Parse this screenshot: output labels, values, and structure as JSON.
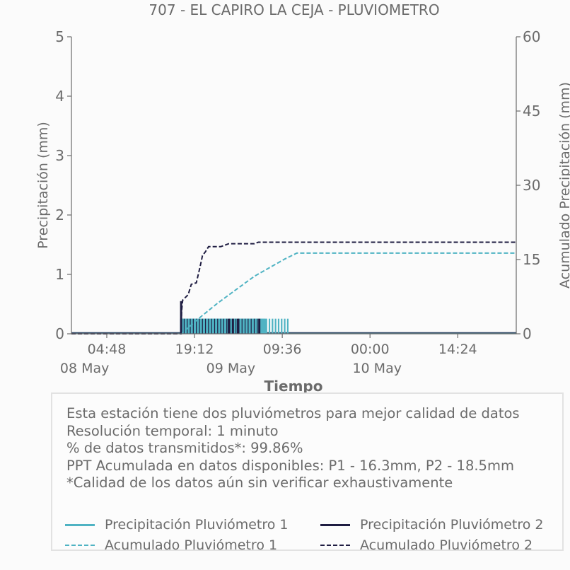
{
  "chart_data": {
    "type": "line",
    "title": "707 - EL CAPIRO LA CEJA - PLUVIOMETRO",
    "xlabel": "Tiempo",
    "ylabel": "Precipitación (mm)",
    "y2label": "Acumulado Precipitación (mm)",
    "ylim": [
      0,
      5
    ],
    "y2lim": [
      0,
      60
    ],
    "yticks": [
      "0",
      "1",
      "2",
      "3",
      "4",
      "5"
    ],
    "y2ticks": [
      "0",
      "15",
      "30",
      "45",
      "60"
    ],
    "xlim": [
      "2024-05-07T23:00",
      "2024-05-11T00:00"
    ],
    "xticks": [
      {
        "time": "2024-05-08T04:48",
        "label": "04:48"
      },
      {
        "time": "2024-05-08T19:12",
        "label": "19:12"
      },
      {
        "time": "2024-05-09T09:36",
        "label": "09:36"
      },
      {
        "time": "2024-05-10T00:00",
        "label": "00:00"
      },
      {
        "time": "2024-05-10T14:24",
        "label": "14:24"
      }
    ],
    "date_labels": [
      {
        "time": "2024-05-08T00:00",
        "label": "08 May"
      },
      {
        "time": "2024-05-09T00:00",
        "label": "09 May"
      },
      {
        "time": "2024-05-10T00:00",
        "label": "10 May"
      }
    ],
    "series": [
      {
        "name": "Precipitación Pluviómetro 1",
        "kind": "bars",
        "color": "#4fb3c3",
        "value": 0.254,
        "start": "2024-05-08T17:00",
        "end": "2024-05-09T10:45",
        "dense_until": "2024-05-09T07:00",
        "step_minutes": 30
      },
      {
        "name": "Precipitación Pluviómetro 2",
        "kind": "bars",
        "color": "#1f1d42",
        "value": 0.254,
        "start": "2024-05-08T17:00",
        "end": "2024-05-09T05:50",
        "peaks": [
          {
            "time": "2024-05-08T17:00",
            "value": 0.55
          }
        ],
        "marks": [
          "2024-05-09T00:50",
          "2024-05-09T01:30",
          "2024-05-09T02:20",
          "2024-05-09T05:50"
        ]
      },
      {
        "name": "Acumulado Pluviómetro 1",
        "kind": "cumulative",
        "color": "#4fb3c3",
        "points": [
          [
            "2024-05-07T23:00",
            0
          ],
          [
            "2024-05-08T17:00",
            0
          ],
          [
            "2024-05-08T20:00",
            3.2
          ],
          [
            "2024-05-08T23:00",
            6.2
          ],
          [
            "2024-05-09T02:00",
            8.9
          ],
          [
            "2024-05-09T05:00",
            11.6
          ],
          [
            "2024-05-09T08:00",
            13.7
          ],
          [
            "2024-05-09T10:00",
            15.1
          ],
          [
            "2024-05-09T12:00",
            16.3
          ],
          [
            "2024-05-11T00:00",
            16.3
          ]
        ]
      },
      {
        "name": "Acumulado Pluviómetro 2",
        "kind": "cumulative",
        "color": "#1f1d42",
        "points": [
          [
            "2024-05-07T23:00",
            0
          ],
          [
            "2024-05-08T17:00",
            0
          ],
          [
            "2024-05-08T17:05",
            4.6
          ],
          [
            "2024-05-08T17:15",
            6.8
          ],
          [
            "2024-05-08T18:10",
            7.9
          ],
          [
            "2024-05-08T18:40",
            10.0
          ],
          [
            "2024-05-08T19:30",
            10.3
          ],
          [
            "2024-05-08T20:05",
            13.4
          ],
          [
            "2024-05-08T20:30",
            15.8
          ],
          [
            "2024-05-08T21:00",
            16.6
          ],
          [
            "2024-05-08T21:30",
            17.6
          ],
          [
            "2024-05-08T23:30",
            17.6
          ],
          [
            "2024-05-09T00:10",
            17.9
          ],
          [
            "2024-05-09T00:50",
            18.2
          ],
          [
            "2024-05-09T05:00",
            18.2
          ],
          [
            "2024-05-09T05:40",
            18.5
          ],
          [
            "2024-05-11T00:00",
            18.5
          ]
        ]
      }
    ],
    "legend_position": "bottom"
  },
  "info": {
    "lines": [
      "Esta estación tiene dos pluviómetros para mejor calidad de datos",
      "Resolución temporal: 1 minuto",
      "% de datos transmitidos*: 99.86%",
      "PPT Acumulada en datos disponibles: P1 - 16.3mm, P2 - 18.5mm",
      "*Calidad de los datos aún sin verificar exhaustivamente"
    ]
  },
  "legend": [
    {
      "label": "Precipitación Pluviómetro 1",
      "color": "#4fb3c3",
      "style": "solid"
    },
    {
      "label": "Precipitación Pluviómetro 2",
      "color": "#1f1d42",
      "style": "solid"
    },
    {
      "label": "Acumulado Pluviómetro 1",
      "color": "#4fb3c3",
      "style": "dashed"
    },
    {
      "label": "Acumulado Pluviómetro 2",
      "color": "#1f1d42",
      "style": "dashed"
    }
  ],
  "colors": {
    "axis": "#6b6b6b",
    "background": "#fbfbfb"
  }
}
